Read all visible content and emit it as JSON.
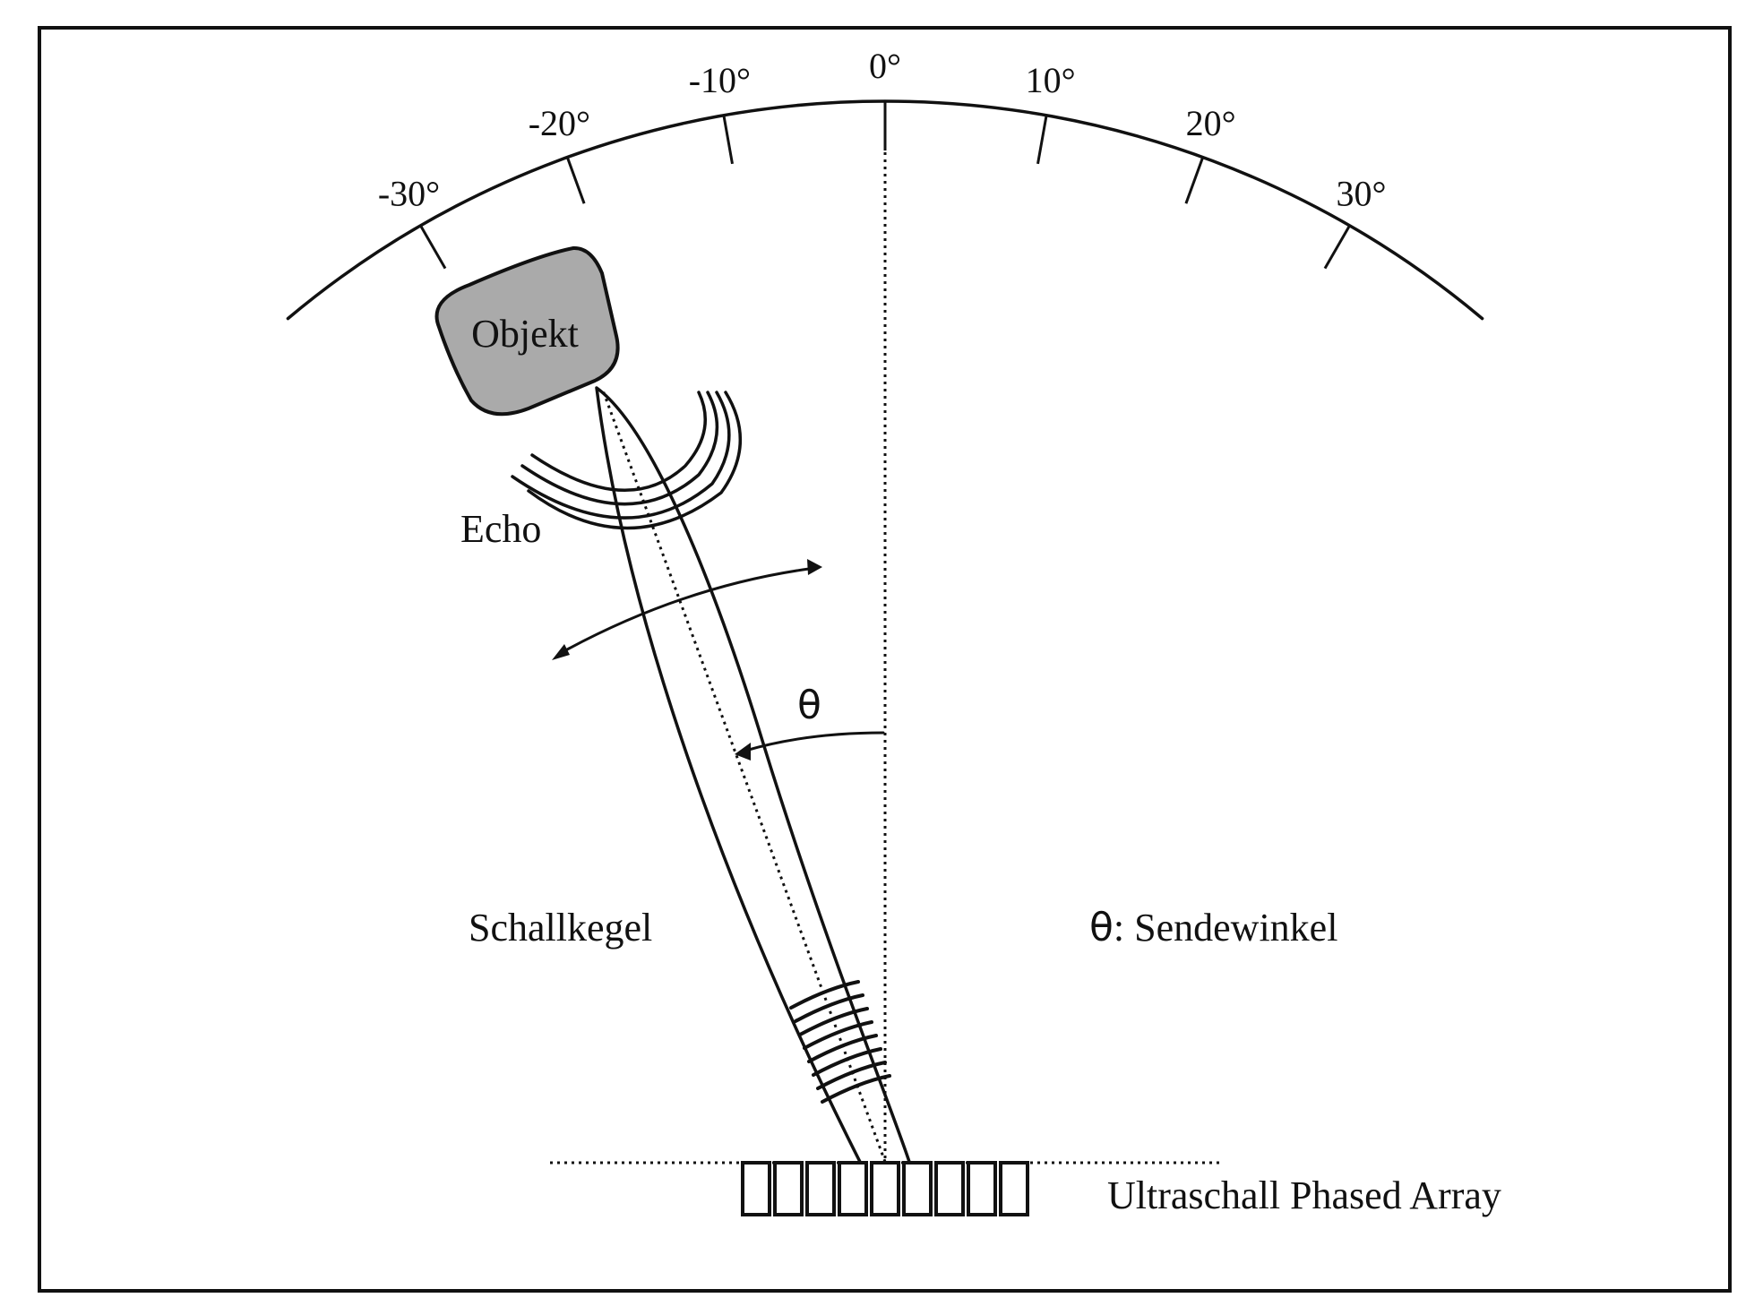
{
  "colors": {
    "line": "#111111",
    "object_fill": "#aaaaaa",
    "background": "#ffffff"
  },
  "scale": {
    "tick_angles_deg": [
      -30,
      -20,
      -10,
      0,
      10,
      20,
      30
    ],
    "tick_labels": [
      "-30°",
      "-20°",
      "-10°",
      "0°",
      "10°",
      "20°",
      "30°"
    ]
  },
  "beam_angle_deg": -22,
  "labels": {
    "object": "Objekt",
    "echo": "Echo",
    "theta": "θ",
    "cone": "Schallkegel",
    "legend_symbol": "θ",
    "legend_text": ": Sendewinkel",
    "array": "Ultraschall Phased Array"
  },
  "array_element_count": 9
}
